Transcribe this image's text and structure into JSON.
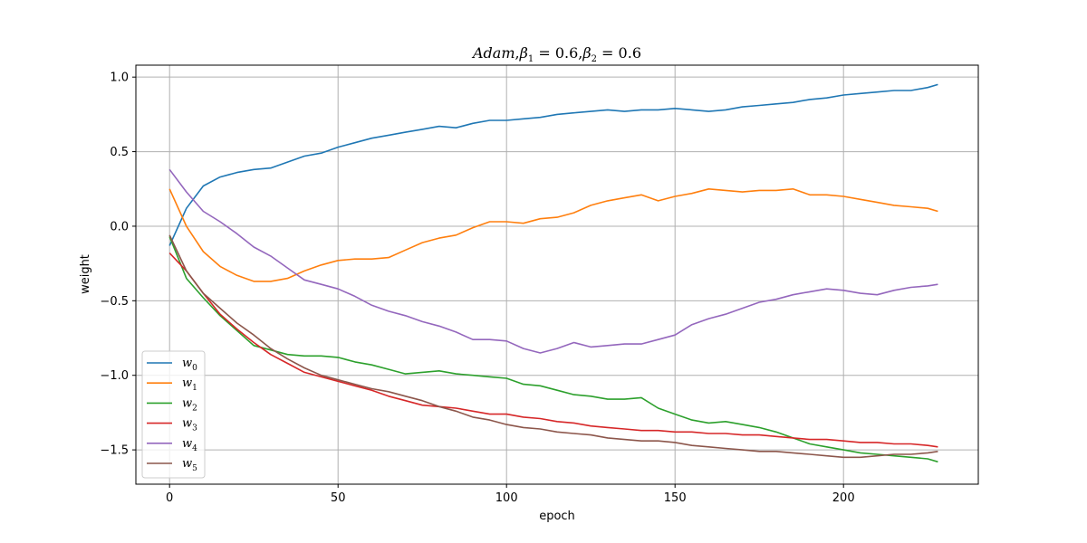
{
  "chart_data": {
    "type": "line",
    "title": "Adam,β₁ = 0.6,β₂ = 0.6",
    "xlabel": "epoch",
    "ylabel": "weight",
    "xlim": [
      -10,
      240
    ],
    "ylim": [
      -1.73,
      1.08
    ],
    "xticks": [
      0,
      50,
      100,
      150,
      200
    ],
    "yticks": [
      1.0,
      0.5,
      0.0,
      -0.5,
      -1.0,
      -1.5
    ],
    "xtick_labels": [
      "0",
      "50",
      "100",
      "150",
      "200"
    ],
    "ytick_labels": [
      "1.0",
      "0.5",
      "0.0",
      "−0.5",
      "−1.0",
      "−1.5"
    ],
    "grid": true,
    "legend_position": "lower-left",
    "x": [
      0,
      5,
      10,
      15,
      20,
      25,
      30,
      35,
      40,
      45,
      50,
      55,
      60,
      65,
      70,
      75,
      80,
      85,
      90,
      95,
      100,
      105,
      110,
      115,
      120,
      125,
      130,
      135,
      140,
      145,
      150,
      155,
      160,
      165,
      170,
      175,
      180,
      185,
      190,
      195,
      200,
      205,
      210,
      215,
      220,
      225,
      228
    ],
    "series": [
      {
        "name": "w0",
        "sub": "0",
        "color": "#1f77b4",
        "values": [
          -0.13,
          0.12,
          0.27,
          0.33,
          0.36,
          0.38,
          0.39,
          0.43,
          0.47,
          0.49,
          0.53,
          0.56,
          0.59,
          0.61,
          0.63,
          0.65,
          0.67,
          0.66,
          0.69,
          0.71,
          0.71,
          0.72,
          0.73,
          0.75,
          0.76,
          0.77,
          0.78,
          0.77,
          0.78,
          0.78,
          0.79,
          0.78,
          0.77,
          0.78,
          0.8,
          0.81,
          0.82,
          0.83,
          0.85,
          0.86,
          0.88,
          0.89,
          0.9,
          0.91,
          0.91,
          0.93,
          0.95
        ]
      },
      {
        "name": "w1",
        "sub": "1",
        "color": "#ff7f0e",
        "values": [
          0.25,
          0.0,
          -0.17,
          -0.27,
          -0.33,
          -0.37,
          -0.37,
          -0.35,
          -0.3,
          -0.26,
          -0.23,
          -0.22,
          -0.22,
          -0.21,
          -0.16,
          -0.11,
          -0.08,
          -0.06,
          -0.01,
          0.03,
          0.03,
          0.02,
          0.05,
          0.06,
          0.09,
          0.14,
          0.17,
          0.19,
          0.21,
          0.17,
          0.2,
          0.22,
          0.25,
          0.24,
          0.23,
          0.24,
          0.24,
          0.25,
          0.21,
          0.21,
          0.2,
          0.18,
          0.16,
          0.14,
          0.13,
          0.12,
          0.1
        ]
      },
      {
        "name": "w2",
        "sub": "2",
        "color": "#2ca02c",
        "values": [
          -0.07,
          -0.35,
          -0.48,
          -0.6,
          -0.7,
          -0.8,
          -0.83,
          -0.86,
          -0.87,
          -0.87,
          -0.88,
          -0.91,
          -0.93,
          -0.96,
          -0.99,
          -0.98,
          -0.97,
          -0.99,
          -1.0,
          -1.01,
          -1.02,
          -1.06,
          -1.07,
          -1.1,
          -1.13,
          -1.14,
          -1.16,
          -1.16,
          -1.15,
          -1.22,
          -1.26,
          -1.3,
          -1.32,
          -1.31,
          -1.33,
          -1.35,
          -1.38,
          -1.42,
          -1.46,
          -1.48,
          -1.5,
          -1.52,
          -1.53,
          -1.54,
          -1.55,
          -1.56,
          -1.58
        ]
      },
      {
        "name": "w3",
        "sub": "3",
        "color": "#d62728",
        "values": [
          -0.18,
          -0.3,
          -0.45,
          -0.59,
          -0.69,
          -0.78,
          -0.86,
          -0.92,
          -0.98,
          -1.01,
          -1.04,
          -1.07,
          -1.1,
          -1.14,
          -1.17,
          -1.2,
          -1.21,
          -1.22,
          -1.24,
          -1.26,
          -1.26,
          -1.28,
          -1.29,
          -1.31,
          -1.32,
          -1.34,
          -1.35,
          -1.36,
          -1.37,
          -1.37,
          -1.38,
          -1.38,
          -1.39,
          -1.39,
          -1.4,
          -1.4,
          -1.41,
          -1.42,
          -1.43,
          -1.43,
          -1.44,
          -1.45,
          -1.45,
          -1.46,
          -1.46,
          -1.47,
          -1.48
        ]
      },
      {
        "name": "w4",
        "sub": "4",
        "color": "#9467bd",
        "values": [
          0.38,
          0.23,
          0.1,
          0.03,
          -0.05,
          -0.14,
          -0.2,
          -0.28,
          -0.36,
          -0.39,
          -0.42,
          -0.47,
          -0.53,
          -0.57,
          -0.6,
          -0.64,
          -0.67,
          -0.71,
          -0.76,
          -0.76,
          -0.77,
          -0.82,
          -0.85,
          -0.82,
          -0.78,
          -0.81,
          -0.8,
          -0.79,
          -0.79,
          -0.76,
          -0.73,
          -0.66,
          -0.62,
          -0.59,
          -0.55,
          -0.51,
          -0.49,
          -0.46,
          -0.44,
          -0.42,
          -0.43,
          -0.45,
          -0.46,
          -0.43,
          -0.41,
          -0.4,
          -0.39
        ]
      },
      {
        "name": "w5",
        "sub": "5",
        "color": "#8c564b",
        "values": [
          -0.06,
          -0.3,
          -0.45,
          -0.55,
          -0.65,
          -0.73,
          -0.82,
          -0.89,
          -0.95,
          -1.0,
          -1.03,
          -1.06,
          -1.09,
          -1.11,
          -1.14,
          -1.17,
          -1.21,
          -1.24,
          -1.28,
          -1.3,
          -1.33,
          -1.35,
          -1.36,
          -1.38,
          -1.39,
          -1.4,
          -1.42,
          -1.43,
          -1.44,
          -1.44,
          -1.45,
          -1.47,
          -1.48,
          -1.49,
          -1.5,
          -1.51,
          -1.51,
          -1.52,
          -1.53,
          -1.54,
          -1.55,
          -1.55,
          -1.54,
          -1.53,
          -1.53,
          -1.52,
          -1.51
        ]
      }
    ]
  }
}
